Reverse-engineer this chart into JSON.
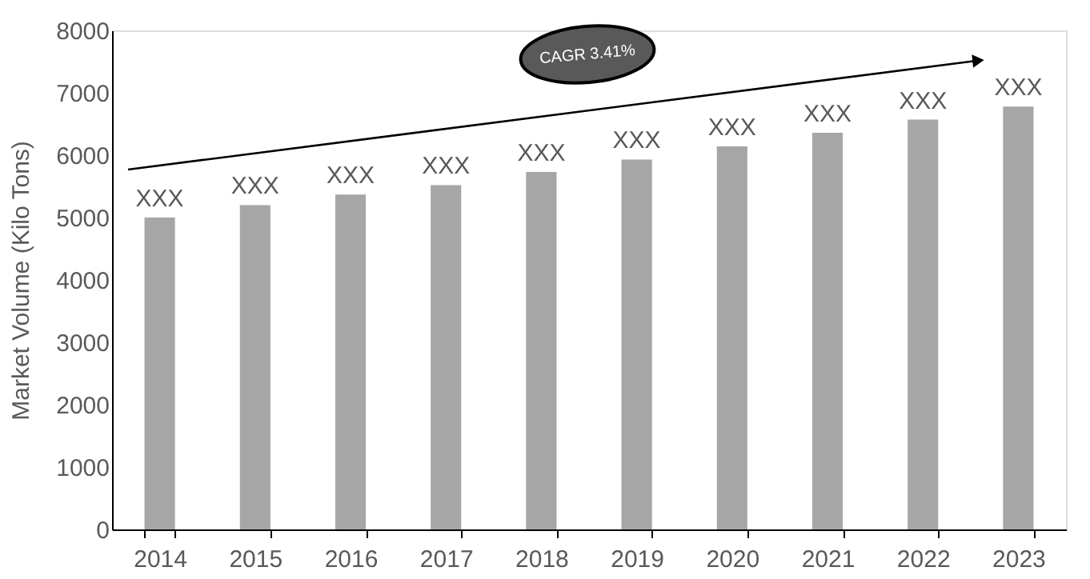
{
  "chart_data": {
    "type": "bar",
    "ylabel": "Market Volume (Kilo Tons)",
    "categories": [
      "2014",
      "2015",
      "2016",
      "2017",
      "2018",
      "2019",
      "2020",
      "2021",
      "2022",
      "2023"
    ],
    "values": [
      5000,
      5200,
      5370,
      5520,
      5730,
      5930,
      6140,
      6360,
      6570,
      6780
    ],
    "value_labels": [
      "XXX",
      "XXX",
      "XXX",
      "XXX",
      "XXX",
      "XXX",
      "XXX",
      "XXX",
      "XXX",
      "XXX"
    ],
    "color": "#a6a6a6",
    "ylim": [
      0,
      8000
    ],
    "yticks": [
      0,
      1000,
      2000,
      3000,
      4000,
      5000,
      6000,
      7000,
      8000
    ],
    "grid": false,
    "annotations": [
      "CAGR 3.41%"
    ]
  }
}
